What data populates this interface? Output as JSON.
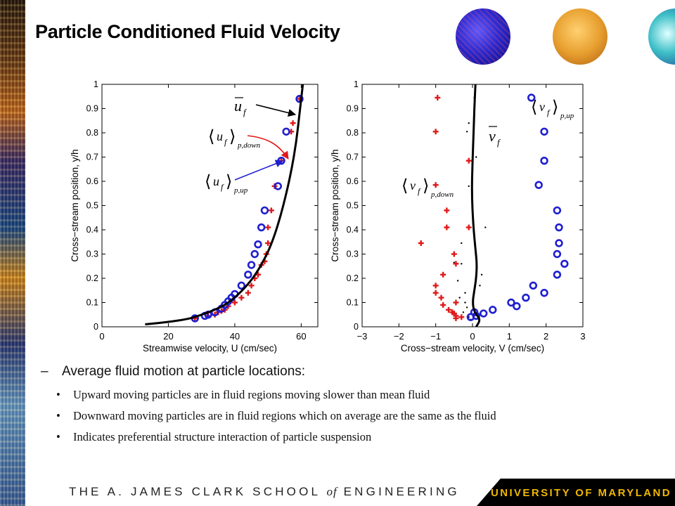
{
  "slide": {
    "title": "Particle Conditioned Fluid Velocity",
    "footer_left_a": "THE A. JAMES CLARK SCHOOL ",
    "footer_left_of": "of",
    "footer_left_b": " ENGINEERING",
    "footer_right": "UNIVERSITY OF MARYLAND"
  },
  "bullets": {
    "main": "Average fluid motion at particle locations:",
    "items": [
      "Upward moving particles are in fluid regions moving slower than mean fluid",
      "Downward moving particles are in fluid regions which on average are the same as the fluid",
      "Indicates preferential structure interaction of particle suspension"
    ]
  },
  "colors": {
    "up": "#1f1fd0",
    "down": "#e01818",
    "mean": "#000000",
    "accent_gold": "#f0b800"
  },
  "chart_data": [
    {
      "type": "scatter",
      "title": "",
      "xlabel": "Streamwise velocity, U (cm/sec)",
      "ylabel": "Cross−stream position, y/h",
      "xlim": [
        0,
        65
      ],
      "ylim": [
        0,
        1
      ],
      "xticks": [
        0,
        20,
        40,
        60
      ],
      "yticks": [
        0,
        0.1,
        0.2,
        0.3,
        0.4,
        0.5,
        0.6,
        0.7,
        0.8,
        0.9,
        1
      ],
      "grid": false,
      "annotations": {
        "mean": "u_f",
        "down": "⟨u_f⟩_p,down",
        "up": "⟨u_f⟩_p,up"
      },
      "series": [
        {
          "role": "mean",
          "style": "line",
          "x": [
            13,
            20,
            25,
            28,
            31,
            34,
            37,
            40,
            43,
            46,
            49,
            51,
            53,
            55,
            57,
            58.5,
            59.5,
            60.5
          ],
          "y": [
            0.01,
            0.02,
            0.03,
            0.04,
            0.055,
            0.07,
            0.09,
            0.12,
            0.16,
            0.21,
            0.28,
            0.34,
            0.42,
            0.52,
            0.64,
            0.76,
            0.88,
            1.0
          ]
        },
        {
          "role": "down",
          "style": "plus",
          "x": [
            28,
            32,
            34,
            35,
            36,
            37,
            38,
            40,
            42,
            44,
            45,
            46,
            47,
            48,
            49,
            49.5,
            50,
            50,
            51,
            52,
            54,
            57,
            57.5,
            59.5
          ],
          "y": [
            0.035,
            0.045,
            0.05,
            0.06,
            0.065,
            0.07,
            0.085,
            0.1,
            0.12,
            0.14,
            0.17,
            0.2,
            0.215,
            0.255,
            0.27,
            0.3,
            0.345,
            0.41,
            0.48,
            0.58,
            0.685,
            0.805,
            0.84,
            0.94
          ]
        },
        {
          "role": "up",
          "style": "circle",
          "x": [
            28,
            31,
            32,
            34,
            36,
            37,
            38,
            39,
            40,
            42,
            44,
            45,
            46,
            47,
            48,
            49,
            53,
            54,
            55.5,
            59.5
          ],
          "y": [
            0.035,
            0.045,
            0.05,
            0.06,
            0.075,
            0.09,
            0.105,
            0.12,
            0.135,
            0.17,
            0.215,
            0.255,
            0.3,
            0.34,
            0.41,
            0.48,
            0.58,
            0.685,
            0.805,
            0.94
          ]
        }
      ]
    },
    {
      "type": "scatter",
      "title": "",
      "xlabel": "Cross−stream velocity, V (cm/sec)",
      "ylabel": "Cross−stream position, y/h",
      "xlim": [
        -3,
        3
      ],
      "ylim": [
        0,
        1
      ],
      "xticks": [
        -3,
        -2,
        -1,
        0,
        1,
        2,
        3
      ],
      "yticks": [
        0,
        0.1,
        0.2,
        0.3,
        0.4,
        0.5,
        0.6,
        0.7,
        0.8,
        0.9,
        1
      ],
      "grid": false,
      "annotations": {
        "mean": "v_f",
        "down": "⟨v_f⟩_p,down",
        "up": "⟨v_f⟩_p,up"
      },
      "series": [
        {
          "role": "mean",
          "style": "line",
          "x": [
            0.1,
            0.22,
            0.05,
            0.0,
            0.05,
            0.1,
            0.12,
            0.08,
            0.02,
            -0.02,
            0.0,
            0.03,
            0.05,
            0.08
          ],
          "y": [
            0.0,
            0.03,
            0.06,
            0.1,
            0.15,
            0.2,
            0.26,
            0.32,
            0.42,
            0.55,
            0.68,
            0.8,
            0.9,
            1.0
          ]
        },
        {
          "role": "down",
          "style": "plus",
          "x": [
            -0.95,
            -1.0,
            -1.0,
            -0.1,
            -0.7,
            -0.1,
            -0.7,
            -1.4,
            -0.5,
            -0.45,
            -0.8,
            -1.0,
            -1.0,
            -0.85,
            -0.8,
            -0.45,
            -0.65,
            -0.55,
            -0.5,
            -0.45,
            -0.45,
            -0.3
          ],
          "y": [
            0.945,
            0.805,
            0.585,
            0.685,
            0.48,
            0.41,
            0.41,
            0.345,
            0.3,
            0.26,
            0.215,
            0.17,
            0.14,
            0.12,
            0.09,
            0.1,
            0.07,
            0.06,
            0.055,
            0.045,
            0.035,
            0.04
          ]
        },
        {
          "role": "up",
          "style": "circle",
          "x": [
            1.6,
            1.95,
            1.95,
            1.8,
            2.3,
            2.35,
            2.35,
            2.3,
            2.5,
            2.3,
            1.95,
            1.65,
            1.45,
            1.2,
            1.05,
            0.55,
            0.3,
            0.1,
            0.05,
            -0.05
          ],
          "y": [
            0.945,
            0.805,
            0.685,
            0.585,
            0.48,
            0.41,
            0.345,
            0.3,
            0.26,
            0.215,
            0.14,
            0.17,
            0.12,
            0.085,
            0.1,
            0.07,
            0.055,
            0.045,
            0.06,
            0.04
          ]
        },
        {
          "role": "mean-samples",
          "style": "dot",
          "x": [
            0.05,
            -0.1,
            -0.15,
            0.1,
            -0.1,
            0.35,
            -0.3,
            -0.5,
            -0.3,
            -0.5,
            0.25,
            -0.4,
            0.2,
            -0.2,
            -0.35,
            -0.2,
            -0.15,
            -0.25,
            0.05,
            -0.1,
            -0.05
          ],
          "y": [
            0.945,
            0.84,
            0.805,
            0.7,
            0.58,
            0.41,
            0.345,
            0.3,
            0.26,
            0.265,
            0.215,
            0.19,
            0.17,
            0.14,
            0.12,
            0.1,
            0.08,
            0.06,
            0.05,
            0.04,
            0.03
          ]
        }
      ]
    }
  ]
}
